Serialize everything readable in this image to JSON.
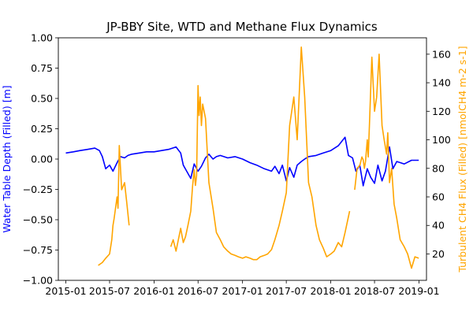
{
  "chart_data": {
    "type": "line",
    "title": "JP-BBY Site, WTD and Methane Flux Dynamics",
    "xlabel": "",
    "xlim": [
      "2014-12-01",
      "2019-02-01"
    ],
    "x_ticks": [
      "2015-01",
      "2015-07",
      "2016-01",
      "2016-07",
      "2017-01",
      "2017-07",
      "2018-01",
      "2018-07",
      "2019-01"
    ],
    "left_axis": {
      "label": "Water Table Depth (Filled) [m]",
      "color": "#0000ff",
      "ylim": [
        -1.0,
        1.0
      ],
      "ticks": [
        "1.00",
        "0.75",
        "0.50",
        "0.25",
        "0.00",
        "−0.25",
        "−0.50",
        "−0.75",
        "−1.00"
      ]
    },
    "right_axis": {
      "label": "Turbulent CH4 Flux (Filled) [nmolCH4 m-2 s-1]",
      "color": "#ffa500",
      "ylim": [
        1.5,
        171.5
      ],
      "ticks": [
        "20",
        "40",
        "60",
        "80",
        "100",
        "120",
        "140",
        "160"
      ]
    },
    "series": [
      {
        "name": "WTD",
        "axis": "left",
        "color": "#0000ff",
        "x": [
          "2015-01-01",
          "2015-02-01",
          "2015-03-01",
          "2015-04-01",
          "2015-05-01",
          "2015-05-20",
          "2015-06-01",
          "2015-06-15",
          "2015-07-01",
          "2015-07-15",
          "2015-08-01",
          "2015-08-15",
          "2015-09-01",
          "2015-09-15",
          "2015-10-01",
          "2015-11-01",
          "2015-12-01",
          "2016-01-01",
          "2016-02-01",
          "2016-03-01",
          "2016-04-01",
          "2016-04-20",
          "2016-05-01",
          "2016-05-15",
          "2016-06-01",
          "2016-06-15",
          "2016-07-01",
          "2016-07-15",
          "2016-08-01",
          "2016-08-15",
          "2016-09-01",
          "2016-09-15",
          "2016-10-01",
          "2016-11-01",
          "2016-12-01",
          "2017-01-01",
          "2017-02-01",
          "2017-03-01",
          "2017-04-01",
          "2017-05-01",
          "2017-05-15",
          "2017-06-01",
          "2017-06-15",
          "2017-07-01",
          "2017-07-15",
          "2017-08-01",
          "2017-08-15",
          "2017-09-01",
          "2017-09-15",
          "2017-10-01",
          "2017-11-01",
          "2017-12-01",
          "2018-01-01",
          "2018-02-01",
          "2018-03-01",
          "2018-03-15",
          "2018-04-01",
          "2018-04-15",
          "2018-05-01",
          "2018-05-15",
          "2018-06-01",
          "2018-06-15",
          "2018-07-01",
          "2018-07-15",
          "2018-08-01",
          "2018-08-15",
          "2018-09-01",
          "2018-09-15",
          "2018-10-01",
          "2018-11-01",
          "2018-12-01",
          "2018-12-31"
        ],
        "y": [
          0.05,
          0.06,
          0.07,
          0.08,
          0.09,
          0.07,
          0.02,
          -0.08,
          -0.05,
          -0.1,
          -0.03,
          0.02,
          0.01,
          0.03,
          0.04,
          0.05,
          0.06,
          0.06,
          0.07,
          0.08,
          0.1,
          0.05,
          -0.05,
          -0.1,
          -0.16,
          -0.04,
          -0.1,
          -0.06,
          0.01,
          0.04,
          0.0,
          0.02,
          0.03,
          0.01,
          0.02,
          0.0,
          -0.03,
          -0.05,
          -0.08,
          -0.1,
          -0.06,
          -0.12,
          -0.05,
          -0.18,
          -0.07,
          -0.15,
          -0.05,
          -0.02,
          0.0,
          0.02,
          0.03,
          0.05,
          0.07,
          0.11,
          0.18,
          0.03,
          0.01,
          -0.1,
          -0.05,
          -0.22,
          -0.08,
          -0.15,
          -0.2,
          -0.05,
          -0.18,
          -0.1,
          0.1,
          -0.08,
          -0.02,
          -0.04,
          -0.01,
          -0.01
        ]
      },
      {
        "name": "CH4 Flux",
        "axis": "right",
        "color": "#ffa500",
        "segments": [
          {
            "x": [
              "2015-05-15",
              "2015-06-01",
              "2015-06-15",
              "2015-07-01",
              "2015-07-10",
              "2015-07-15",
              "2015-07-20",
              "2015-08-01",
              "2015-08-05",
              "2015-08-10",
              "2015-08-20",
              "2015-09-01",
              "2015-09-10",
              "2015-09-20"
            ],
            "y": [
              12,
              14,
              17,
              20,
              30,
              40,
              45,
              60,
              52,
              96,
              65,
              70,
              56,
              40
            ]
          },
          {
            "x": [
              "2016-03-10",
              "2016-03-20",
              "2016-04-01",
              "2016-04-20",
              "2016-05-01",
              "2016-05-10",
              "2016-05-20",
              "2016-06-01",
              "2016-06-08",
              "2016-06-15",
              "2016-06-20",
              "2016-06-25",
              "2016-07-01",
              "2016-07-05",
              "2016-07-10",
              "2016-07-15",
              "2016-07-20",
              "2016-08-01",
              "2016-08-15",
              "2016-09-01",
              "2016-09-15",
              "2016-10-01",
              "2016-10-15",
              "2016-11-01",
              "2016-11-15",
              "2016-12-01",
              "2016-12-15",
              "2017-01-01",
              "2017-01-15",
              "2017-02-01",
              "2017-02-15",
              "2017-03-01",
              "2017-03-15",
              "2017-04-01",
              "2017-04-15",
              "2017-05-01",
              "2017-05-15",
              "2017-06-01",
              "2017-06-15",
              "2017-07-01",
              "2017-07-15",
              "2017-08-01",
              "2017-08-15",
              "2017-09-01",
              "2017-09-15",
              "2017-10-01",
              "2017-10-15",
              "2017-11-01",
              "2017-11-15",
              "2017-12-01",
              "2017-12-15",
              "2018-01-01",
              "2018-01-15",
              "2018-02-01",
              "2018-02-15",
              "2018-03-01",
              "2018-03-20"
            ],
            "y": [
              25,
              30,
              22,
              38,
              28,
              32,
              40,
              50,
              67,
              79,
              68,
              75,
              138,
              117,
              130,
              110,
              125,
              115,
              70,
              52,
              35,
              30,
              25,
              22,
              20,
              19,
              18,
              17,
              18,
              17,
              16,
              16,
              18,
              19,
              20,
              23,
              30,
              40,
              50,
              63,
              110,
              130,
              100,
              165,
              130,
              70,
              60,
              40,
              30,
              24,
              18,
              20,
              22,
              28,
              25,
              35,
              50
            ]
          },
          {
            "x": [
              "2018-04-10",
              "2018-04-20",
              "2018-05-01",
              "2018-05-10",
              "2018-05-15",
              "2018-05-20",
              "2018-05-25",
              "2018-06-01",
              "2018-06-05",
              "2018-06-10",
              "2018-06-20",
              "2018-07-01",
              "2018-07-10",
              "2018-07-20",
              "2018-08-01",
              "2018-08-10",
              "2018-08-20",
              "2018-08-25",
              "2018-09-01",
              "2018-09-10",
              "2018-09-20",
              "2018-10-01",
              "2018-10-15",
              "2018-11-01",
              "2018-11-15",
              "2018-12-01",
              "2018-12-15",
              "2018-12-31"
            ],
            "y": [
              65,
              80,
              82,
              88,
              86,
              80,
              85,
              100,
              88,
              110,
              158,
              120,
              130,
              160,
              110,
              100,
              90,
              105,
              70,
              80,
              55,
              45,
              30,
              25,
              20,
              10,
              18,
              17
            ]
          }
        ]
      }
    ]
  }
}
